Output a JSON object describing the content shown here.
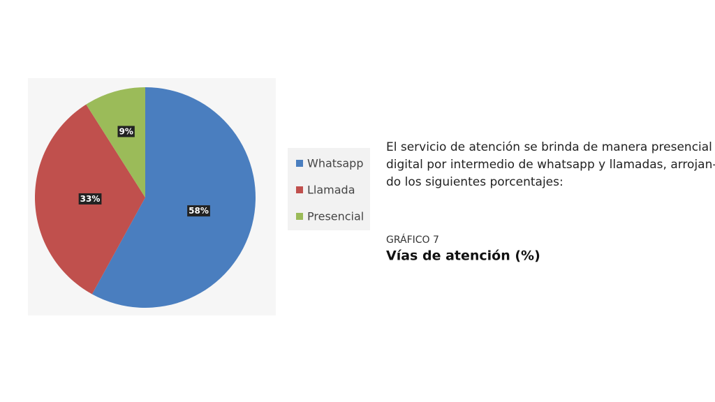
{
  "chart_data": {
    "type": "pie",
    "categories": [
      "Whatsapp",
      "Llamada",
      "Presencial"
    ],
    "values": [
      58,
      33,
      9
    ],
    "value_labels": [
      "58%",
      "33%",
      "9%"
    ],
    "colors": [
      "#4a7ebf",
      "#c0504d",
      "#9bbb59"
    ],
    "legend": "right"
  },
  "document": {
    "paragraph": [
      "El servicio de atención se brinda de manera presencial y",
      "digital por intermedio de whatsapp y llamadas, arrojan-",
      "do los siguientes porcentajes:"
    ],
    "figure_label": "GRÁFICO 7",
    "figure_title": "Vías de atención (%)"
  }
}
